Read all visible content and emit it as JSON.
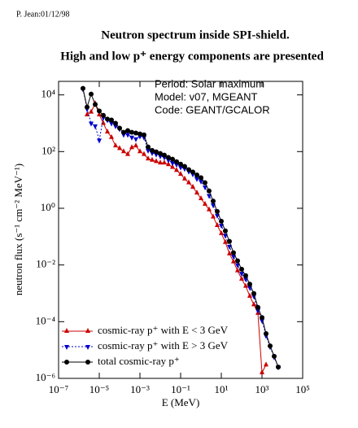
{
  "chart_data": {
    "type": "line",
    "author_note": "P. Jean:01/12/98",
    "title": "Neutron spectrum inside SPI-shield.",
    "subtitle": "High and low p⁺ energy components are presented",
    "annotations": [
      "Period: Solar maximum",
      "Model: v07, MGEANT",
      "Code: GEANT/GCALOR"
    ],
    "xlabel": "E (MeV)",
    "ylabel": "neutron flux (s⁻¹ cm⁻² MeV⁻¹)",
    "xscale": "log",
    "yscale": "log",
    "xlim": [
      1e-07,
      100000
    ],
    "ylim": [
      1e-06,
      30000
    ],
    "xticks": [
      {
        "value": 1e-07,
        "label": "10⁻⁷"
      },
      {
        "value": 1e-05,
        "label": "10⁻⁵"
      },
      {
        "value": 0.001,
        "label": "10⁻³"
      },
      {
        "value": 0.1,
        "label": "10⁻¹"
      },
      {
        "value": 10,
        "label": "10¹"
      },
      {
        "value": 1000,
        "label": "10³"
      },
      {
        "value": 100000,
        "label": "10⁵"
      }
    ],
    "yticks": [
      {
        "value": 1e-06,
        "label": "10⁻⁶"
      },
      {
        "value": 0.0001,
        "label": "10⁻⁴"
      },
      {
        "value": 0.01,
        "label": "10⁻²"
      },
      {
        "value": 1,
        "label": "10⁰"
      },
      {
        "value": 100,
        "label": "10²"
      },
      {
        "value": 10000,
        "label": "10⁴"
      }
    ],
    "legend": "lower left",
    "x": [
      1.58e-06,
      2.51e-06,
      3.98e-06,
      6.31e-06,
      1e-05,
      1.58e-05,
      2.51e-05,
      3.98e-05,
      6.31e-05,
      0.0001,
      0.000158,
      0.000251,
      0.000398,
      0.000631,
      0.001,
      0.00158,
      0.00251,
      0.00398,
      0.00631,
      0.01,
      0.0158,
      0.0251,
      0.0398,
      0.0631,
      0.1,
      0.158,
      0.251,
      0.398,
      0.631,
      1,
      1.58,
      2.51,
      3.98,
      6.31,
      10,
      15.8,
      25.1,
      39.8,
      63.1,
      100,
      158,
      251,
      398,
      631,
      1000,
      1580,
      2510,
      3980,
      6310
    ],
    "series": [
      {
        "name": "cosmic-ray p⁺ with E < 3 GeV",
        "color": "#cc0000",
        "marker": "triangle-up",
        "linestyle": "solid",
        "values": [
          null,
          2000,
          2500,
          5000,
          2000,
          1000,
          500,
          320,
          160,
          130,
          100,
          80,
          140,
          160,
          100,
          80,
          56,
          50,
          45,
          40,
          40,
          35,
          28,
          22,
          16,
          11,
          8,
          5.6,
          3.5,
          2.2,
          1.4,
          0.9,
          0.5,
          0.25,
          0.13,
          0.063,
          0.025,
          0.013,
          0.0063,
          0.0032,
          0.0018,
          0.0008,
          0.0004,
          0.0002,
          1.6e-06,
          3e-06,
          null,
          null,
          null
        ]
      },
      {
        "name": "cosmic-ray p⁺ with E > 3 GeV",
        "color": "#0000cc",
        "marker": "triangle-down",
        "linestyle": "dotted",
        "values": [
          16000,
          3200,
          1000,
          800,
          250,
          1600,
          1300,
          1000,
          800,
          630,
          400,
          400,
          320,
          280,
          350,
          320,
          110,
          90,
          80,
          70,
          63,
          50,
          40,
          35,
          28,
          25,
          20,
          16,
          11,
          9,
          5.6,
          2.8,
          1.3,
          0.56,
          0.25,
          0.11,
          0.045,
          0.02,
          0.01,
          0.005,
          0.0032,
          0.0016,
          0.0008,
          0.00025,
          0.00011,
          3.2e-05,
          1.3e-05,
          5.6e-06,
          2.5e-06
        ]
      },
      {
        "name": "total cosmic-ray p⁺",
        "color": "#000000",
        "marker": "circle",
        "linestyle": "solid",
        "values": [
          17000,
          3700,
          10700,
          4600,
          2700,
          1900,
          1400,
          1300,
          1000,
          670,
          480,
          550,
          480,
          450,
          420,
          390,
          145,
          110,
          98,
          86,
          75,
          62,
          54,
          44,
          36,
          30,
          23,
          19,
          15,
          12,
          8,
          4.1,
          1.8,
          0.77,
          0.35,
          0.16,
          0.068,
          0.027,
          0.014,
          0.0071,
          0.0042,
          0.0021,
          0.00098,
          0.00032,
          0.00014,
          3.8e-05,
          1.4e-05,
          6e-06,
          2.5e-06
        ]
      }
    ]
  }
}
